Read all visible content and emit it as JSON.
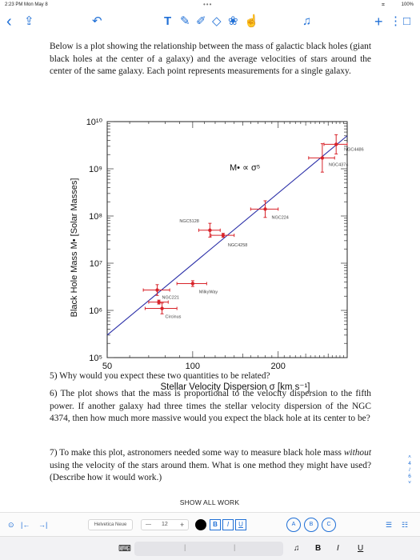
{
  "status": {
    "time": "2:23 PM  Mon May 8",
    "battery": "100%",
    "wifi": "⌗",
    "dots": "•••"
  },
  "toolbar": {
    "back": "‹",
    "share": "⇪",
    "undo": "↶",
    "text_tool": "T",
    "pen": "✎",
    "highlighter": "✐",
    "eraser": "◇",
    "lasso": "❀",
    "pointer": "☝",
    "mic": "♫",
    "add": "+",
    "more": "⋮",
    "pages": "□"
  },
  "document": {
    "intro": "Below is a plot showing the relationship between the mass of galactic black holes (giant black holes at the center of a galaxy) and the average velocities of stars around the center of the same galaxy. Each point represents measurements for a single galaxy.",
    "q5": "5) Why would you expect these two quantities to be related?",
    "q6": "6) The plot shows that the mass is proportional to the velocity dispersion to the fifth power. If another galaxy had three times the stellar velocity dispersion of the NGC 4374, then how much more massive would you expect the black hole at its center to be?",
    "q7_a": "7) To make this plot, astronomers needed some way to measure black hole mass ",
    "q7_it": "without",
    "q7_b": " using the velocity of the stars around them. What is one method they might have used? (Describe how it would work.)"
  },
  "chart_data": {
    "type": "scatter",
    "scale": "log-log",
    "xlabel": "Stellar Velocity Dispersion σ [km s⁻¹]",
    "ylabel": "Black Hole Mass M• [Solar Masses]",
    "xlim": [
      50,
      350
    ],
    "ylim": [
      100000,
      10000000000
    ],
    "x_ticks": [
      50,
      100,
      200
    ],
    "y_ticks": [
      "10⁵",
      "10⁶",
      "10⁷",
      "10⁸",
      "10⁹",
      "10¹⁰"
    ],
    "y_tick_values": [
      100000,
      1000000,
      10000000,
      100000000,
      1000000000,
      10000000000
    ],
    "annotation": "M• ∝ σ⁵",
    "fit_line": {
      "x": [
        50,
        350
      ],
      "y": [
        300000,
        5000000000
      ]
    },
    "points": [
      {
        "label": "NGC4486",
        "x": 320,
        "y": 3300000000,
        "xerr": 30,
        "yerr_factor": 1.6
      },
      {
        "label": "NGC4374",
        "x": 286,
        "y": 1700000000,
        "xerr": 30,
        "yerr_factor": 2.0
      },
      {
        "label": "NGC224",
        "x": 180,
        "y": 140000000,
        "xerr": 20,
        "yerr_factor": 1.5
      },
      {
        "label": "NGC5128",
        "x": 115,
        "y": 50000000,
        "xerr": 10,
        "yerr_factor": 1.4
      },
      {
        "label": "NGC4258",
        "x": 128,
        "y": 39000000,
        "xerr": 12,
        "yerr_factor": 1.1
      },
      {
        "label": "MilkyWay",
        "x": 100,
        "y": 3700000,
        "xerr": 12,
        "yerr_factor": 1.15
      },
      {
        "label": "",
        "x": 75,
        "y": 2700000,
        "xerr": 8,
        "yerr_factor": 1.3
      },
      {
        "label": "NGC221",
        "x": 76,
        "y": 1500000,
        "xerr": 6,
        "yerr_factor": 1.1
      },
      {
        "label": "Circinus",
        "x": 78,
        "y": 1100000,
        "xerr": 10,
        "yerr_factor": 1.3
      }
    ],
    "point_color": "#d8232a",
    "line_color": "#2b2fa8"
  },
  "show_all": "SHOW ALL WORK",
  "pager": [
    "˄",
    "4",
    "/",
    "6",
    "˅"
  ],
  "format_bar": {
    "left_icons": [
      "⊙",
      "|←",
      "→|"
    ],
    "font": "Helvetica Neue",
    "size_minus": "—",
    "size": "12",
    "size_plus": "+",
    "bold": "B",
    "italic": "I",
    "underline": "U",
    "hearts": [
      "A",
      "B",
      "C"
    ],
    "list1": "☰",
    "list2": "☷"
  },
  "keyboard_bar": {
    "left_icon": "⌨",
    "mic": "♫",
    "bold": "B",
    "italic": "I",
    "underline": "U"
  }
}
